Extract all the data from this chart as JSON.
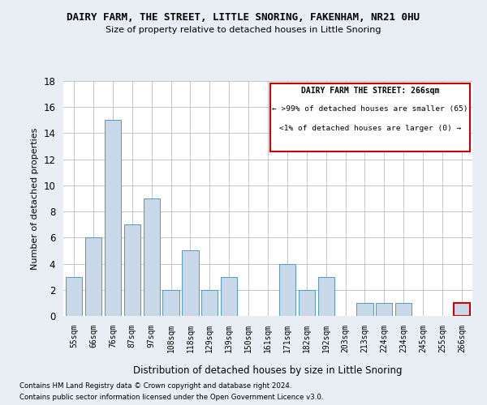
{
  "title": "DAIRY FARM, THE STREET, LITTLE SNORING, FAKENHAM, NR21 0HU",
  "subtitle": "Size of property relative to detached houses in Little Snoring",
  "xlabel": "Distribution of detached houses by size in Little Snoring",
  "ylabel": "Number of detached properties",
  "categories": [
    "55sqm",
    "66sqm",
    "76sqm",
    "87sqm",
    "97sqm",
    "108sqm",
    "118sqm",
    "129sqm",
    "139sqm",
    "150sqm",
    "161sqm",
    "171sqm",
    "182sqm",
    "192sqm",
    "203sqm",
    "213sqm",
    "224sqm",
    "234sqm",
    "245sqm",
    "255sqm",
    "266sqm"
  ],
  "values": [
    3,
    6,
    15,
    7,
    9,
    2,
    5,
    2,
    3,
    0,
    0,
    4,
    2,
    3,
    0,
    1,
    1,
    1,
    0,
    0,
    1
  ],
  "bar_color": "#c8d8e8",
  "bar_edge_color": "#5599bb",
  "highlight_index": 20,
  "highlight_bar_edge_color": "#cc0000",
  "legend_box_edge_color": "#cc0000",
  "legend_title": "DAIRY FARM THE STREET: 266sqm",
  "legend_line1": "← >99% of detached houses are smaller (65)",
  "legend_line2": "<1% of detached houses are larger (0) →",
  "ylim": [
    0,
    18
  ],
  "yticks": [
    0,
    2,
    4,
    6,
    8,
    10,
    12,
    14,
    16,
    18
  ],
  "footnote1": "Contains HM Land Registry data © Crown copyright and database right 2024.",
  "footnote2": "Contains public sector information licensed under the Open Government Licence v3.0.",
  "bg_color": "#e8eef4",
  "plot_bg_color": "#ffffff",
  "grid_color": "#bbbbbb"
}
